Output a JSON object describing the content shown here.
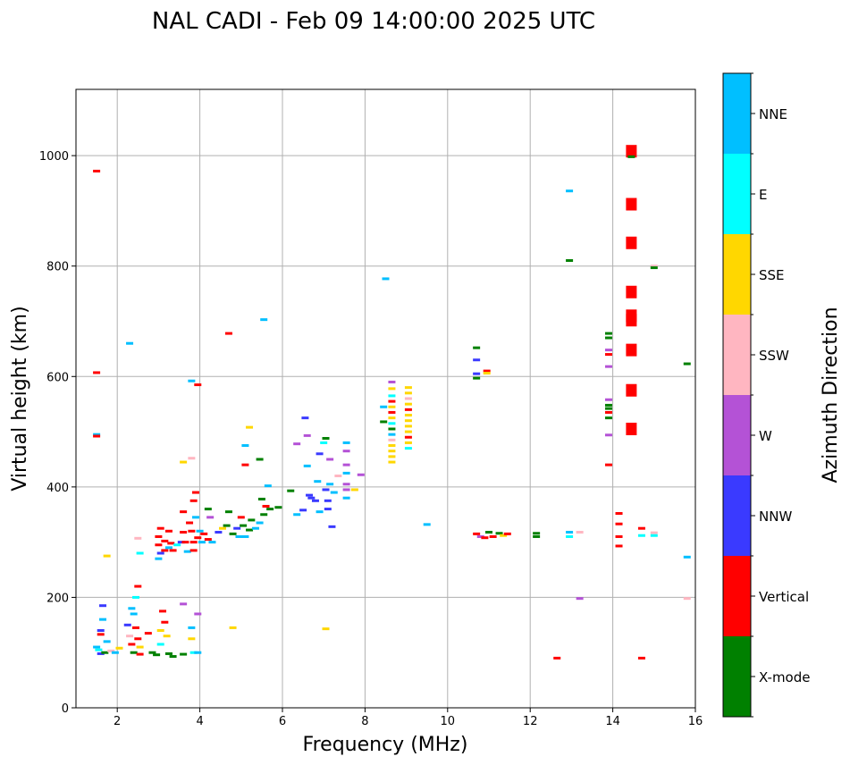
{
  "chart_data": {
    "type": "scatter",
    "title": "NAL CADI - Feb 09 14:00:00 2025 UTC",
    "xlabel": "Frequency (MHz)",
    "ylabel": "Virtual height (km)",
    "xlim": [
      1,
      16
    ],
    "ylim": [
      0,
      1120
    ],
    "xticks": [
      "2",
      "4",
      "6",
      "8",
      "10",
      "12",
      "14",
      "16"
    ],
    "yticks": [
      "0",
      "200",
      "400",
      "600",
      "800",
      "1000"
    ],
    "grid": true,
    "colorbar": {
      "label": "Azimuth Direction",
      "categories": [
        {
          "name": "X-mode",
          "color": "#008000"
        },
        {
          "name": "Vertical",
          "color": "#ff0000"
        },
        {
          "name": "NNW",
          "color": "#3a3aff"
        },
        {
          "name": "W",
          "color": "#b452d6"
        },
        {
          "name": "SSW",
          "color": "#ffb6c1"
        },
        {
          "name": "SSE",
          "color": "#ffd700"
        },
        {
          "name": "E",
          "color": "#00ffff"
        },
        {
          "name": "NNE",
          "color": "#00bfff"
        }
      ]
    },
    "points": [
      {
        "f": 1.5,
        "h": 972,
        "c": "Vertical"
      },
      {
        "f": 1.5,
        "h": 607,
        "c": "Vertical"
      },
      {
        "f": 1.5,
        "h": 495,
        "c": "NNE"
      },
      {
        "f": 1.5,
        "h": 492,
        "c": "Vertical"
      },
      {
        "f": 1.65,
        "h": 185,
        "c": "NNW"
      },
      {
        "f": 1.65,
        "h": 160,
        "c": "NNE"
      },
      {
        "f": 1.6,
        "h": 140,
        "c": "NNW"
      },
      {
        "f": 1.6,
        "h": 133,
        "c": "Vertical"
      },
      {
        "f": 1.5,
        "h": 110,
        "c": "NNE"
      },
      {
        "f": 1.55,
        "h": 105,
        "c": "E"
      },
      {
        "f": 1.6,
        "h": 98,
        "c": "NNW"
      },
      {
        "f": 1.7,
        "h": 100,
        "c": "X-mode"
      },
      {
        "f": 1.75,
        "h": 120,
        "c": "NNE"
      },
      {
        "f": 1.75,
        "h": 275,
        "c": "SSE"
      },
      {
        "f": 1.85,
        "h": 103,
        "c": "SSW"
      },
      {
        "f": 1.95,
        "h": 100,
        "c": "NNE"
      },
      {
        "f": 2.05,
        "h": 108,
        "c": "SSE"
      },
      {
        "f": 2.25,
        "h": 150,
        "c": "NNW"
      },
      {
        "f": 2.3,
        "h": 130,
        "c": "SSW"
      },
      {
        "f": 2.35,
        "h": 180,
        "c": "NNE"
      },
      {
        "f": 2.4,
        "h": 170,
        "c": "NNE"
      },
      {
        "f": 2.35,
        "h": 115,
        "c": "Vertical"
      },
      {
        "f": 2.4,
        "h": 100,
        "c": "X-mode"
      },
      {
        "f": 2.45,
        "h": 145,
        "c": "Vertical"
      },
      {
        "f": 2.5,
        "h": 220,
        "c": "Vertical"
      },
      {
        "f": 2.45,
        "h": 200,
        "c": "E"
      },
      {
        "f": 2.5,
        "h": 125,
        "c": "Vertical"
      },
      {
        "f": 2.55,
        "h": 110,
        "c": "SSE"
      },
      {
        "f": 2.3,
        "h": 660,
        "c": "NNE"
      },
      {
        "f": 2.5,
        "h": 307,
        "c": "SSW"
      },
      {
        "f": 2.55,
        "h": 280,
        "c": "E"
      },
      {
        "f": 2.55,
        "h": 97,
        "c": "Vertical"
      },
      {
        "f": 2.75,
        "h": 135,
        "c": "Vertical"
      },
      {
        "f": 2.85,
        "h": 100,
        "c": "X-mode"
      },
      {
        "f": 2.95,
        "h": 96,
        "c": "X-mode"
      },
      {
        "f": 3.05,
        "h": 140,
        "c": "SSE"
      },
      {
        "f": 3.05,
        "h": 115,
        "c": "E"
      },
      {
        "f": 3.1,
        "h": 175,
        "c": "Vertical"
      },
      {
        "f": 3.15,
        "h": 155,
        "c": "Vertical"
      },
      {
        "f": 3.2,
        "h": 130,
        "c": "SSE"
      },
      {
        "f": 3.25,
        "h": 98,
        "c": "X-mode"
      },
      {
        "f": 3.35,
        "h": 93,
        "c": "X-mode"
      },
      {
        "f": 3.6,
        "h": 188,
        "c": "W"
      },
      {
        "f": 3.6,
        "h": 97,
        "c": "X-mode"
      },
      {
        "f": 3.8,
        "h": 145,
        "c": "NNE"
      },
      {
        "f": 3.8,
        "h": 125,
        "c": "SSE"
      },
      {
        "f": 3.85,
        "h": 100,
        "c": "E"
      },
      {
        "f": 3.95,
        "h": 170,
        "c": "W"
      },
      {
        "f": 3.95,
        "h": 100,
        "c": "NNE"
      },
      {
        "f": 3.05,
        "h": 325,
        "c": "Vertical"
      },
      {
        "f": 3.0,
        "h": 310,
        "c": "Vertical"
      },
      {
        "f": 3.0,
        "h": 295,
        "c": "Vertical"
      },
      {
        "f": 3.05,
        "h": 280,
        "c": "NNW"
      },
      {
        "f": 3.0,
        "h": 270,
        "c": "NNE"
      },
      {
        "f": 3.15,
        "h": 302,
        "c": "Vertical"
      },
      {
        "f": 3.15,
        "h": 285,
        "c": "Vertical"
      },
      {
        "f": 3.25,
        "h": 320,
        "c": "Vertical"
      },
      {
        "f": 3.25,
        "h": 290,
        "c": "NNE"
      },
      {
        "f": 3.3,
        "h": 298,
        "c": "Vertical"
      },
      {
        "f": 3.35,
        "h": 285,
        "c": "Vertical"
      },
      {
        "f": 3.45,
        "h": 295,
        "c": "E"
      },
      {
        "f": 3.55,
        "h": 300,
        "c": "NNW"
      },
      {
        "f": 3.6,
        "h": 355,
        "c": "Vertical"
      },
      {
        "f": 3.6,
        "h": 318,
        "c": "Vertical"
      },
      {
        "f": 3.65,
        "h": 300,
        "c": "Vertical"
      },
      {
        "f": 3.6,
        "h": 445,
        "c": "SSE"
      },
      {
        "f": 3.7,
        "h": 283,
        "c": "NNE"
      },
      {
        "f": 3.75,
        "h": 335,
        "c": "Vertical"
      },
      {
        "f": 3.8,
        "h": 320,
        "c": "Vertical"
      },
      {
        "f": 3.85,
        "h": 300,
        "c": "Vertical"
      },
      {
        "f": 3.85,
        "h": 285,
        "c": "Vertical"
      },
      {
        "f": 3.9,
        "h": 345,
        "c": "NNE"
      },
      {
        "f": 3.9,
        "h": 390,
        "c": "Vertical"
      },
      {
        "f": 3.85,
        "h": 375,
        "c": "Vertical"
      },
      {
        "f": 3.95,
        "h": 308,
        "c": "Vertical"
      },
      {
        "f": 4.0,
        "h": 320,
        "c": "NNE"
      },
      {
        "f": 4.05,
        "h": 300,
        "c": "NNE"
      },
      {
        "f": 4.1,
        "h": 315,
        "c": "Vertical"
      },
      {
        "f": 4.2,
        "h": 305,
        "c": "Vertical"
      },
      {
        "f": 4.25,
        "h": 345,
        "c": "W"
      },
      {
        "f": 4.3,
        "h": 300,
        "c": "NNE"
      },
      {
        "f": 4.2,
        "h": 360,
        "c": "X-mode"
      },
      {
        "f": 3.8,
        "h": 592,
        "c": "NNE"
      },
      {
        "f": 3.95,
        "h": 585,
        "c": "Vertical"
      },
      {
        "f": 3.8,
        "h": 452,
        "c": "SSW"
      },
      {
        "f": 4.45,
        "h": 318,
        "c": "NNW"
      },
      {
        "f": 4.55,
        "h": 325,
        "c": "SSE"
      },
      {
        "f": 4.65,
        "h": 330,
        "c": "X-mode"
      },
      {
        "f": 4.7,
        "h": 355,
        "c": "X-mode"
      },
      {
        "f": 4.8,
        "h": 315,
        "c": "X-mode"
      },
      {
        "f": 4.9,
        "h": 325,
        "c": "NNW"
      },
      {
        "f": 4.95,
        "h": 310,
        "c": "NNE"
      },
      {
        "f": 5.0,
        "h": 345,
        "c": "Vertical"
      },
      {
        "f": 5.05,
        "h": 330,
        "c": "X-mode"
      },
      {
        "f": 5.1,
        "h": 310,
        "c": "NNE"
      },
      {
        "f": 5.2,
        "h": 322,
        "c": "X-mode"
      },
      {
        "f": 5.25,
        "h": 340,
        "c": "X-mode"
      },
      {
        "f": 5.35,
        "h": 325,
        "c": "NNE"
      },
      {
        "f": 5.45,
        "h": 335,
        "c": "NNE"
      },
      {
        "f": 5.5,
        "h": 378,
        "c": "X-mode"
      },
      {
        "f": 5.55,
        "h": 350,
        "c": "X-mode"
      },
      {
        "f": 5.6,
        "h": 365,
        "c": "Vertical"
      },
      {
        "f": 5.7,
        "h": 360,
        "c": "X-mode"
      },
      {
        "f": 5.65,
        "h": 402,
        "c": "NNE"
      },
      {
        "f": 5.9,
        "h": 363,
        "c": "X-mode"
      },
      {
        "f": 4.7,
        "h": 678,
        "c": "Vertical"
      },
      {
        "f": 5.55,
        "h": 703,
        "c": "NNE"
      },
      {
        "f": 5.2,
        "h": 508,
        "c": "SSE"
      },
      {
        "f": 5.1,
        "h": 475,
        "c": "NNE"
      },
      {
        "f": 5.1,
        "h": 440,
        "c": "Vertical"
      },
      {
        "f": 5.45,
        "h": 450,
        "c": "X-mode"
      },
      {
        "f": 4.8,
        "h": 145,
        "c": "SSE"
      },
      {
        "f": 6.2,
        "h": 393,
        "c": "X-mode"
      },
      {
        "f": 6.35,
        "h": 478,
        "c": "W"
      },
      {
        "f": 6.35,
        "h": 350,
        "c": "NNE"
      },
      {
        "f": 6.5,
        "h": 358,
        "c": "NNW"
      },
      {
        "f": 6.55,
        "h": 525,
        "c": "NNW"
      },
      {
        "f": 6.6,
        "h": 493,
        "c": "W"
      },
      {
        "f": 6.65,
        "h": 385,
        "c": "NNW"
      },
      {
        "f": 6.7,
        "h": 380,
        "c": "NNW"
      },
      {
        "f": 6.8,
        "h": 375,
        "c": "NNW"
      },
      {
        "f": 6.85,
        "h": 410,
        "c": "NNE"
      },
      {
        "f": 6.6,
        "h": 438,
        "c": "NNE"
      },
      {
        "f": 6.9,
        "h": 460,
        "c": "NNW"
      },
      {
        "f": 6.9,
        "h": 355,
        "c": "NNE"
      },
      {
        "f": 7.0,
        "h": 480,
        "c": "E"
      },
      {
        "f": 7.05,
        "h": 488,
        "c": "X-mode"
      },
      {
        "f": 7.05,
        "h": 395,
        "c": "NNW"
      },
      {
        "f": 7.1,
        "h": 375,
        "c": "NNW"
      },
      {
        "f": 7.1,
        "h": 360,
        "c": "NNW"
      },
      {
        "f": 7.15,
        "h": 450,
        "c": "W"
      },
      {
        "f": 7.15,
        "h": 405,
        "c": "NNE"
      },
      {
        "f": 7.2,
        "h": 328,
        "c": "NNW"
      },
      {
        "f": 7.25,
        "h": 390,
        "c": "NNE"
      },
      {
        "f": 7.35,
        "h": 420,
        "c": "SSW"
      },
      {
        "f": 7.55,
        "h": 480,
        "c": "NNE"
      },
      {
        "f": 7.55,
        "h": 465,
        "c": "W"
      },
      {
        "f": 7.55,
        "h": 440,
        "c": "W"
      },
      {
        "f": 7.55,
        "h": 425,
        "c": "NNE"
      },
      {
        "f": 7.55,
        "h": 405,
        "c": "W"
      },
      {
        "f": 7.55,
        "h": 395,
        "c": "W"
      },
      {
        "f": 7.55,
        "h": 380,
        "c": "NNE"
      },
      {
        "f": 7.75,
        "h": 395,
        "c": "SSE"
      },
      {
        "f": 7.9,
        "h": 422,
        "c": "W"
      },
      {
        "f": 7.05,
        "h": 143,
        "c": "SSE"
      },
      {
        "f": 8.5,
        "h": 777,
        "c": "NNE"
      },
      {
        "f": 8.45,
        "h": 545,
        "c": "NNE"
      },
      {
        "f": 8.45,
        "h": 518,
        "c": "X-mode"
      },
      {
        "f": 8.65,
        "h": 590,
        "c": "W"
      },
      {
        "f": 8.65,
        "h": 578,
        "c": "SSE"
      },
      {
        "f": 8.65,
        "h": 565,
        "c": "E"
      },
      {
        "f": 8.65,
        "h": 555,
        "c": "Vertical"
      },
      {
        "f": 8.65,
        "h": 545,
        "c": "SSE"
      },
      {
        "f": 8.65,
        "h": 535,
        "c": "Vertical"
      },
      {
        "f": 8.65,
        "h": 525,
        "c": "SSE"
      },
      {
        "f": 8.65,
        "h": 515,
        "c": "E"
      },
      {
        "f": 8.65,
        "h": 505,
        "c": "X-mode"
      },
      {
        "f": 8.65,
        "h": 495,
        "c": "NNE"
      },
      {
        "f": 8.65,
        "h": 485,
        "c": "SSW"
      },
      {
        "f": 8.65,
        "h": 475,
        "c": "SSE"
      },
      {
        "f": 8.65,
        "h": 465,
        "c": "SSE"
      },
      {
        "f": 8.65,
        "h": 455,
        "c": "SSE"
      },
      {
        "f": 8.65,
        "h": 445,
        "c": "SSE"
      },
      {
        "f": 9.05,
        "h": 580,
        "c": "SSE"
      },
      {
        "f": 9.05,
        "h": 570,
        "c": "SSE"
      },
      {
        "f": 9.05,
        "h": 560,
        "c": "SSW"
      },
      {
        "f": 9.05,
        "h": 550,
        "c": "SSE"
      },
      {
        "f": 9.05,
        "h": 540,
        "c": "Vertical"
      },
      {
        "f": 9.05,
        "h": 530,
        "c": "SSE"
      },
      {
        "f": 9.05,
        "h": 520,
        "c": "SSE"
      },
      {
        "f": 9.05,
        "h": 510,
        "c": "SSE"
      },
      {
        "f": 9.05,
        "h": 500,
        "c": "SSE"
      },
      {
        "f": 9.05,
        "h": 490,
        "c": "Vertical"
      },
      {
        "f": 9.05,
        "h": 480,
        "c": "SSE"
      },
      {
        "f": 9.05,
        "h": 470,
        "c": "E"
      },
      {
        "f": 9.5,
        "h": 332,
        "c": "NNE"
      },
      {
        "f": 10.7,
        "h": 652,
        "c": "X-mode"
      },
      {
        "f": 10.7,
        "h": 630,
        "c": "NNW"
      },
      {
        "f": 10.7,
        "h": 605,
        "c": "NNW"
      },
      {
        "f": 10.7,
        "h": 597,
        "c": "X-mode"
      },
      {
        "f": 10.95,
        "h": 610,
        "c": "Vertical"
      },
      {
        "f": 10.95,
        "h": 606,
        "c": "SSE"
      },
      {
        "f": 10.7,
        "h": 315,
        "c": "Vertical"
      },
      {
        "f": 10.8,
        "h": 310,
        "c": "W"
      },
      {
        "f": 10.9,
        "h": 308,
        "c": "Vertical"
      },
      {
        "f": 11.0,
        "h": 318,
        "c": "X-mode"
      },
      {
        "f": 11.1,
        "h": 310,
        "c": "Vertical"
      },
      {
        "f": 11.25,
        "h": 316,
        "c": "X-mode"
      },
      {
        "f": 11.35,
        "h": 312,
        "c": "SSE"
      },
      {
        "f": 11.45,
        "h": 315,
        "c": "Vertical"
      },
      {
        "f": 12.15,
        "h": 316,
        "c": "X-mode"
      },
      {
        "f": 12.15,
        "h": 310,
        "c": "X-mode"
      },
      {
        "f": 12.65,
        "h": 90,
        "c": "Vertical"
      },
      {
        "f": 12.95,
        "h": 936,
        "c": "NNE"
      },
      {
        "f": 12.95,
        "h": 810,
        "c": "X-mode"
      },
      {
        "f": 12.95,
        "h": 318,
        "c": "NNE"
      },
      {
        "f": 12.95,
        "h": 310,
        "c": "E"
      },
      {
        "f": 13.2,
        "h": 318,
        "c": "SSW"
      },
      {
        "f": 13.2,
        "h": 198,
        "c": "W"
      },
      {
        "f": 13.9,
        "h": 678,
        "c": "X-mode"
      },
      {
        "f": 13.9,
        "h": 670,
        "c": "X-mode"
      },
      {
        "f": 13.9,
        "h": 648,
        "c": "W"
      },
      {
        "f": 13.9,
        "h": 640,
        "c": "Vertical"
      },
      {
        "f": 13.9,
        "h": 618,
        "c": "W"
      },
      {
        "f": 13.9,
        "h": 558,
        "c": "W"
      },
      {
        "f": 13.9,
        "h": 548,
        "c": "X-mode"
      },
      {
        "f": 13.9,
        "h": 542,
        "c": "X-mode"
      },
      {
        "f": 13.9,
        "h": 535,
        "c": "Vertical"
      },
      {
        "f": 13.9,
        "h": 525,
        "c": "X-mode"
      },
      {
        "f": 13.9,
        "h": 494,
        "c": "W"
      },
      {
        "f": 13.9,
        "h": 440,
        "c": "Vertical"
      },
      {
        "f": 14.15,
        "h": 352,
        "c": "Vertical"
      },
      {
        "f": 14.15,
        "h": 333,
        "c": "Vertical"
      },
      {
        "f": 14.15,
        "h": 310,
        "c": "Vertical"
      },
      {
        "f": 14.15,
        "h": 293,
        "c": "Vertical"
      },
      {
        "f": 14.45,
        "h": 1008,
        "c": "Vertical"
      },
      {
        "f": 14.45,
        "h": 998,
        "c": "X-mode"
      },
      {
        "f": 14.45,
        "h": 912,
        "c": "Vertical"
      },
      {
        "f": 14.45,
        "h": 842,
        "c": "Vertical"
      },
      {
        "f": 14.45,
        "h": 753,
        "c": "Vertical"
      },
      {
        "f": 14.45,
        "h": 710,
        "c": "Vertical"
      },
      {
        "f": 14.45,
        "h": 702,
        "c": "Vertical"
      },
      {
        "f": 14.45,
        "h": 648,
        "c": "Vertical"
      },
      {
        "f": 14.45,
        "h": 575,
        "c": "Vertical"
      },
      {
        "f": 14.45,
        "h": 505,
        "c": "Vertical"
      },
      {
        "f": 14.7,
        "h": 325,
        "c": "Vertical"
      },
      {
        "f": 14.7,
        "h": 312,
        "c": "E"
      },
      {
        "f": 14.7,
        "h": 90,
        "c": "Vertical"
      },
      {
        "f": 15.0,
        "h": 317,
        "c": "SSW"
      },
      {
        "f": 15.0,
        "h": 312,
        "c": "E"
      },
      {
        "f": 15.0,
        "h": 800,
        "c": "SSW"
      },
      {
        "f": 15.0,
        "h": 797,
        "c": "X-mode"
      },
      {
        "f": 15.8,
        "h": 623,
        "c": "X-mode"
      },
      {
        "f": 15.8,
        "h": 273,
        "c": "NNE"
      },
      {
        "f": 15.8,
        "h": 198,
        "c": "SSW"
      }
    ]
  }
}
